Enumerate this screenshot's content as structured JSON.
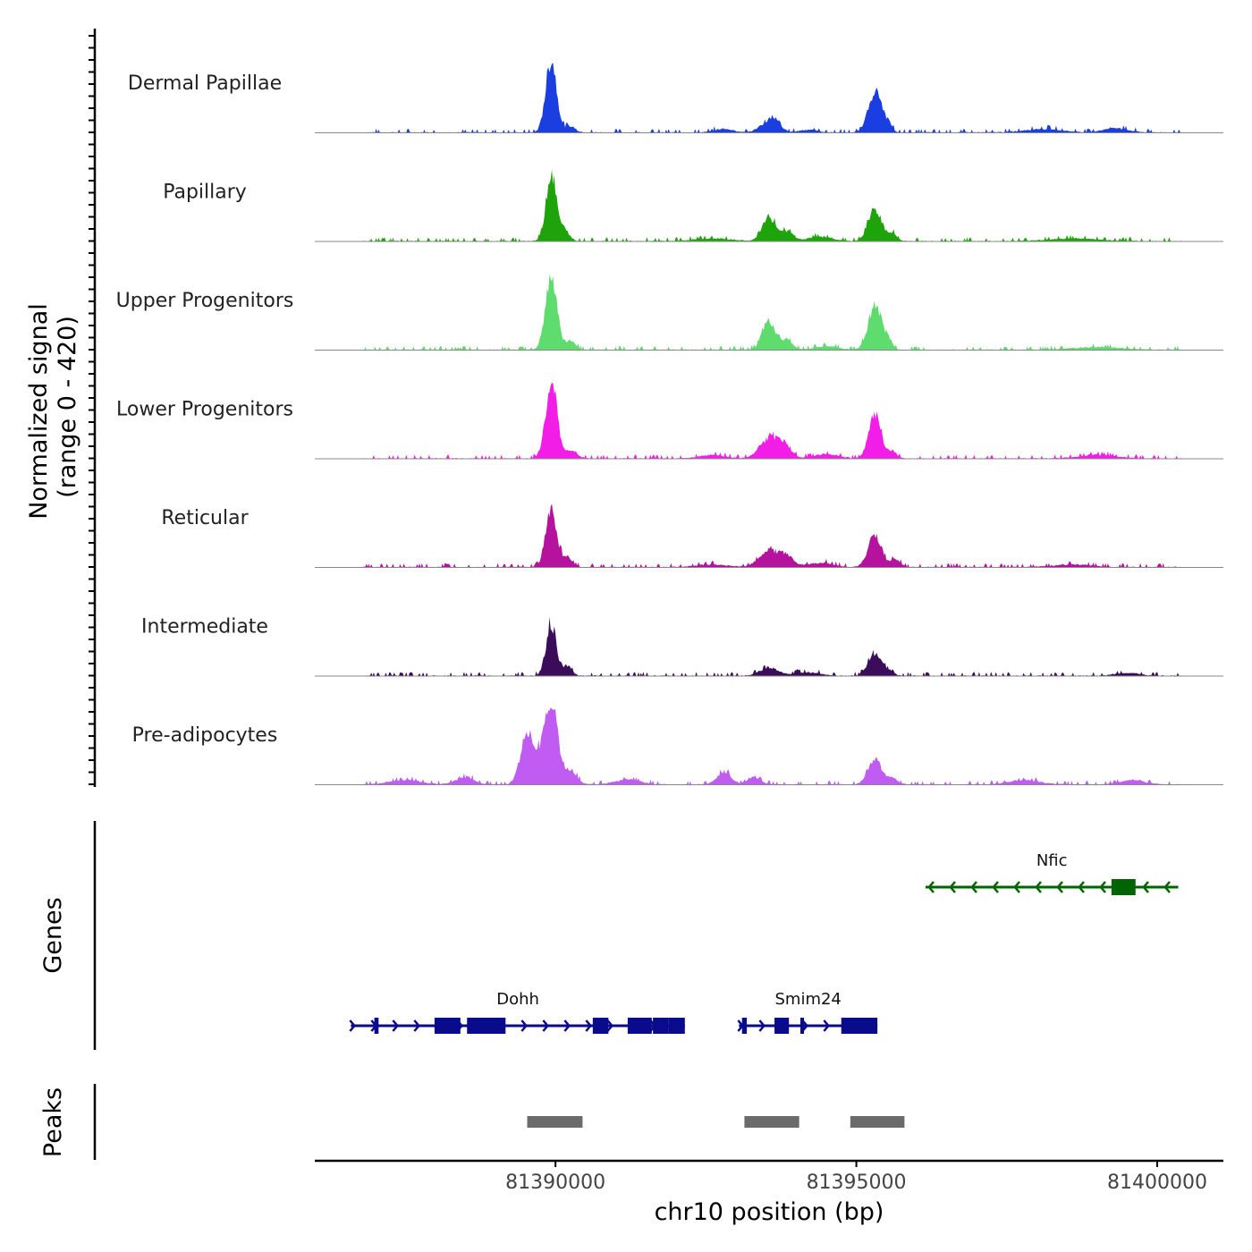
{
  "chart_data": {
    "type": "area",
    "title": "",
    "ylabel_line1": "Normalized signal",
    "ylabel_line2": "(range 0 - 420)",
    "y_range": [
      0,
      420
    ],
    "xlabel": "chr10 position (bp)",
    "chromosome": "chr10",
    "xlim": [
      81386000,
      81401100
    ],
    "x_ticks": [
      81390000,
      81395000,
      81400000
    ],
    "x_tick_labels": [
      "81390000",
      "81395000",
      "81400000"
    ],
    "signal_domain": [
      81386800,
      81400400
    ],
    "tracks": [
      {
        "name": "Dermal Papillae",
        "color": "#1a3ee0",
        "peaks": [
          [
            81389930,
            420,
            90
          ],
          [
            81390250,
            35,
            80
          ],
          [
            81393540,
            55,
            140
          ],
          [
            81393650,
            40,
            90
          ],
          [
            81395310,
            235,
            110
          ],
          [
            81395530,
            45,
            60
          ],
          [
            81392800,
            20,
            150
          ],
          [
            81394200,
            15,
            150
          ],
          [
            81398100,
            20,
            300
          ],
          [
            81399300,
            25,
            200
          ]
        ]
      },
      {
        "name": "Papillary",
        "color": "#1fa30a",
        "peaks": [
          [
            81389930,
            390,
            85
          ],
          [
            81390150,
            60,
            80
          ],
          [
            81393550,
            135,
            110
          ],
          [
            81393850,
            55,
            100
          ],
          [
            81395310,
            185,
            110
          ],
          [
            81395600,
            40,
            70
          ],
          [
            81394400,
            25,
            200
          ],
          [
            81392600,
            15,
            300
          ],
          [
            81398600,
            15,
            400
          ]
        ]
      },
      {
        "name": "Upper Progenitors",
        "color": "#5fdc6e",
        "peaks": [
          [
            81389930,
            420,
            95
          ],
          [
            81390250,
            50,
            80
          ],
          [
            81393550,
            165,
            110
          ],
          [
            81393850,
            55,
            90
          ],
          [
            81395310,
            255,
            110
          ],
          [
            81395530,
            45,
            70
          ],
          [
            81394500,
            20,
            180
          ],
          [
            81399000,
            15,
            400
          ]
        ]
      },
      {
        "name": "Lower Progenitors",
        "color": "#f21ee8",
        "peaks": [
          [
            81389930,
            435,
            95
          ],
          [
            81390250,
            45,
            100
          ],
          [
            81393550,
            110,
            160
          ],
          [
            81393800,
            65,
            120
          ],
          [
            81395310,
            250,
            100
          ],
          [
            81395600,
            40,
            70
          ],
          [
            81394500,
            25,
            200
          ],
          [
            81392600,
            20,
            200
          ],
          [
            81399000,
            20,
            300
          ]
        ]
      },
      {
        "name": "Reticular",
        "color": "#b5139e",
        "peaks": [
          [
            81389930,
            330,
            90
          ],
          [
            81390200,
            60,
            80
          ],
          [
            81393550,
            100,
            160
          ],
          [
            81393850,
            55,
            110
          ],
          [
            81395310,
            180,
            110
          ],
          [
            81395650,
            40,
            80
          ],
          [
            81394400,
            25,
            200
          ],
          [
            81392600,
            15,
            250
          ],
          [
            81398600,
            15,
            300
          ]
        ]
      },
      {
        "name": "Intermediate",
        "color": "#3b0c5a",
        "peaks": [
          [
            81389930,
            295,
            85
          ],
          [
            81390200,
            55,
            70
          ],
          [
            81393550,
            45,
            150
          ],
          [
            81394200,
            20,
            200
          ],
          [
            81395310,
            120,
            110
          ],
          [
            81395550,
            25,
            70
          ],
          [
            81399500,
            15,
            200
          ]
        ]
      },
      {
        "name": "Pre-adipocytes",
        "color": "#c05cf2",
        "peaks": [
          [
            81389930,
            515,
            100
          ],
          [
            81389530,
            280,
            110
          ],
          [
            81389750,
            110,
            70
          ],
          [
            81390250,
            80,
            100
          ],
          [
            81388500,
            40,
            150
          ],
          [
            81392800,
            65,
            120
          ],
          [
            81393300,
            45,
            100
          ],
          [
            81395310,
            145,
            110
          ],
          [
            81395600,
            35,
            80
          ],
          [
            81387500,
            25,
            250
          ],
          [
            81391200,
            30,
            200
          ],
          [
            81397800,
            25,
            250
          ],
          [
            81399600,
            25,
            200
          ]
        ]
      }
    ],
    "genes": [
      {
        "name": "Dohh",
        "strand": "+",
        "color": "#0a0a8c",
        "start": 81386600,
        "end": 81392150,
        "exons": [
          [
            81386990,
            81387060
          ],
          [
            81387990,
            81388420
          ],
          [
            81388530,
            81389150
          ],
          [
            81390620,
            81390880
          ],
          [
            81391200,
            81391600
          ],
          [
            81391620,
            81391880
          ],
          [
            81391880,
            81392150
          ],
          [
            81389090,
            81389170
          ]
        ]
      },
      {
        "name": "Smim24",
        "strand": "+",
        "color": "#0a0a8c",
        "start": 81393050,
        "end": 81395350,
        "exons": [
          [
            81393100,
            81393180
          ],
          [
            81393640,
            81393880
          ],
          [
            81394070,
            81394130
          ],
          [
            81394750,
            81395350
          ]
        ]
      },
      {
        "name": "Nfic",
        "strand": "-",
        "color": "#006400",
        "start": 81396150,
        "end": 81400350,
        "exons": [
          [
            81399240,
            81399640
          ]
        ]
      }
    ],
    "peak_regions": [
      [
        81389530,
        81390450
      ],
      [
        81393140,
        81394050
      ],
      [
        81394900,
        81395800
      ]
    ],
    "peak_color": "#6b6b6b",
    "genes_label": "Genes",
    "peaks_label": "Peaks"
  }
}
